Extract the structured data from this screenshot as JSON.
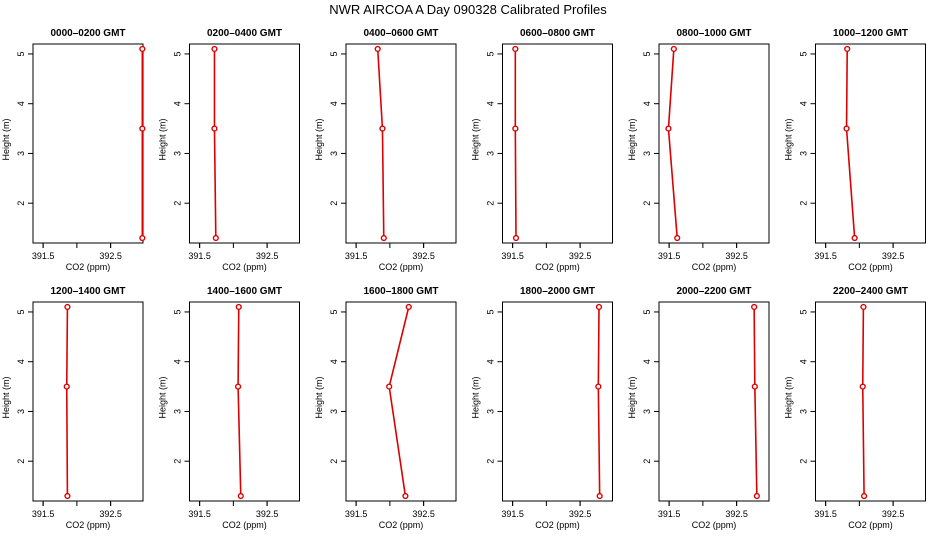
{
  "figure": {
    "title": "NWR AIRCOA A  Day 090328  Calibrated Profiles"
  },
  "colors": {
    "series": "#dd0000",
    "axes": "#000000",
    "background": "#ffffff"
  },
  "chart_data": [
    {
      "type": "line",
      "title": "0000–0200 GMT",
      "xlabel": "CO2 (ppm)",
      "ylabel": "Height (m)",
      "xlim": [
        391.35,
        392.98
      ],
      "ylim": [
        1.2,
        5.2
      ],
      "xticks": [
        "391.5",
        "392.5"
      ],
      "yticks": [
        "2",
        "3",
        "4",
        "5"
      ],
      "series": [
        {
          "x": [
            392.97,
            392.97,
            392.97
          ],
          "y": [
            5.1,
            3.5,
            1.3
          ]
        }
      ]
    },
    {
      "type": "line",
      "title": "0200–0400 GMT",
      "xlabel": "CO2 (ppm)",
      "ylabel": "Height (m)",
      "xlim": [
        391.35,
        392.98
      ],
      "ylim": [
        1.2,
        5.2
      ],
      "xticks": [
        "391.5",
        "392.5"
      ],
      "yticks": [
        "2",
        "3",
        "4",
        "5"
      ],
      "series": [
        {
          "x": [
            391.72,
            391.72,
            391.74
          ],
          "y": [
            5.1,
            3.5,
            1.3
          ]
        }
      ]
    },
    {
      "type": "line",
      "title": "0400–0600 GMT",
      "xlabel": "CO2 (ppm)",
      "ylabel": "Height (m)",
      "xlim": [
        391.35,
        392.98
      ],
      "ylim": [
        1.2,
        5.2
      ],
      "xticks": [
        "391.5",
        "392.5"
      ],
      "yticks": [
        "2",
        "3",
        "4",
        "5"
      ],
      "series": [
        {
          "x": [
            391.82,
            391.89,
            391.91
          ],
          "y": [
            5.1,
            3.5,
            1.3
          ]
        }
      ]
    },
    {
      "type": "line",
      "title": "0600–0800 GMT",
      "xlabel": "CO2 (ppm)",
      "ylabel": "Height (m)",
      "xlim": [
        391.35,
        392.98
      ],
      "ylim": [
        1.2,
        5.2
      ],
      "xticks": [
        "391.5",
        "392.5"
      ],
      "yticks": [
        "2",
        "3",
        "4",
        "5"
      ],
      "series": [
        {
          "x": [
            391.54,
            391.54,
            391.55
          ],
          "y": [
            5.1,
            3.5,
            1.3
          ]
        }
      ]
    },
    {
      "type": "line",
      "title": "0800–1000 GMT",
      "xlabel": "CO2 (ppm)",
      "ylabel": "Height (m)",
      "xlim": [
        391.35,
        392.98
      ],
      "ylim": [
        1.2,
        5.2
      ],
      "xticks": [
        "391.5",
        "392.5"
      ],
      "yticks": [
        "2",
        "3",
        "4",
        "5"
      ],
      "series": [
        {
          "x": [
            391.57,
            391.49,
            391.62
          ],
          "y": [
            5.1,
            3.5,
            1.3
          ]
        }
      ]
    },
    {
      "type": "line",
      "title": "1000–1200 GMT",
      "xlabel": "CO2 (ppm)",
      "ylabel": "Height (m)",
      "xlim": [
        391.35,
        392.98
      ],
      "ylim": [
        1.2,
        5.2
      ],
      "xticks": [
        "391.5",
        "392.5"
      ],
      "yticks": [
        "2",
        "3",
        "4",
        "5"
      ],
      "series": [
        {
          "x": [
            391.82,
            391.81,
            391.93
          ],
          "y": [
            5.1,
            3.5,
            1.3
          ]
        }
      ]
    },
    {
      "type": "line",
      "title": "1200–1400 GMT",
      "xlabel": "CO2 (ppm)",
      "ylabel": "Height (m)",
      "xlim": [
        391.35,
        392.98
      ],
      "ylim": [
        1.2,
        5.2
      ],
      "xticks": [
        "391.5",
        "392.5"
      ],
      "yticks": [
        "2",
        "3",
        "4",
        "5"
      ],
      "series": [
        {
          "x": [
            391.86,
            391.85,
            391.86
          ],
          "y": [
            5.1,
            3.5,
            1.3
          ]
        }
      ]
    },
    {
      "type": "line",
      "title": "1400–1600 GMT",
      "xlabel": "CO2 (ppm)",
      "ylabel": "Height (m)",
      "xlim": [
        391.35,
        392.98
      ],
      "ylim": [
        1.2,
        5.2
      ],
      "xticks": [
        "391.5",
        "392.5"
      ],
      "yticks": [
        "2",
        "3",
        "4",
        "5"
      ],
      "series": [
        {
          "x": [
            392.08,
            392.07,
            392.11
          ],
          "y": [
            5.1,
            3.5,
            1.3
          ]
        }
      ]
    },
    {
      "type": "line",
      "title": "1600–1800 GMT",
      "xlabel": "CO2 (ppm)",
      "ylabel": "Height (m)",
      "xlim": [
        391.35,
        392.98
      ],
      "ylim": [
        1.2,
        5.2
      ],
      "xticks": [
        "391.5",
        "392.5"
      ],
      "yticks": [
        "2",
        "3",
        "4",
        "5"
      ],
      "series": [
        {
          "x": [
            392.28,
            391.99,
            392.23
          ],
          "y": [
            5.1,
            3.5,
            1.3
          ]
        }
      ]
    },
    {
      "type": "line",
      "title": "1800–2000 GMT",
      "xlabel": "CO2 (ppm)",
      "ylabel": "Height (m)",
      "xlim": [
        391.35,
        392.98
      ],
      "ylim": [
        1.2,
        5.2
      ],
      "xticks": [
        "391.5",
        "392.5"
      ],
      "yticks": [
        "2",
        "3",
        "4",
        "5"
      ],
      "series": [
        {
          "x": [
            392.78,
            392.77,
            392.79
          ],
          "y": [
            5.1,
            3.5,
            1.3
          ]
        }
      ]
    },
    {
      "type": "line",
      "title": "2000–2200 GMT",
      "xlabel": "CO2 (ppm)",
      "ylabel": "Height (m)",
      "xlim": [
        391.35,
        392.98
      ],
      "ylim": [
        1.2,
        5.2
      ],
      "xticks": [
        "391.5",
        "392.5"
      ],
      "yticks": [
        "2",
        "3",
        "4",
        "5"
      ],
      "series": [
        {
          "x": [
            392.76,
            392.77,
            392.8
          ],
          "y": [
            5.1,
            3.5,
            1.3
          ]
        }
      ]
    },
    {
      "type": "line",
      "title": "2200–2400 GMT",
      "xlabel": "CO2 (ppm)",
      "ylabel": "Height (m)",
      "xlim": [
        391.35,
        392.98
      ],
      "ylim": [
        1.2,
        5.2
      ],
      "xticks": [
        "391.5",
        "392.5"
      ],
      "yticks": [
        "2",
        "3",
        "4",
        "5"
      ],
      "series": [
        {
          "x": [
            392.06,
            392.05,
            392.07
          ],
          "y": [
            5.1,
            3.5,
            1.3
          ]
        }
      ]
    }
  ]
}
